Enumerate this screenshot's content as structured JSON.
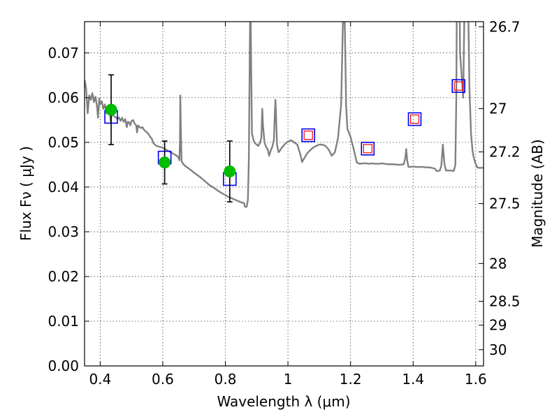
{
  "chart_data": {
    "type": "scatter",
    "title": "",
    "xlabel": "Wavelength  λ (μm)",
    "ylabel": "Flux  Fν  ( μJy )",
    "y2label": "Magnitude (AB)",
    "xlim": [
      0.35,
      1.625
    ],
    "ylim": [
      0.0,
      0.077
    ],
    "grid": true,
    "x_ticks": [
      0.4,
      0.6,
      0.8,
      1.0,
      1.2,
      1.4,
      1.6
    ],
    "x_tick_labels": [
      "0.4",
      "0.6",
      "0.8",
      "1",
      "1.2",
      "1.4",
      "1.6"
    ],
    "y_ticks": [
      0.0,
      0.01,
      0.02,
      0.03,
      0.04,
      0.05,
      0.06,
      0.07
    ],
    "y_tick_labels": [
      "0.00",
      "0.01",
      "0.02",
      "0.03",
      "0.04",
      "0.05",
      "0.06",
      "0.07"
    ],
    "y2_ticks": [
      26.7,
      27,
      27.2,
      27.5,
      28,
      28.5,
      29,
      30
    ],
    "y2_tick_labels": [
      "26.7",
      "27",
      "27.2",
      "27.5",
      "28",
      "28.5",
      "29",
      "30"
    ],
    "colors": {
      "observed": "#00bb00",
      "model_box": "#0000ee",
      "model_inner": "#ee0000",
      "template": "#808080"
    },
    "observed": [
      {
        "x": 0.435,
        "y": 0.0573,
        "err": 0.0078
      },
      {
        "x": 0.606,
        "y": 0.0455,
        "err": 0.0048
      },
      {
        "x": 0.814,
        "y": 0.0435,
        "err": 0.0068
      }
    ],
    "model_points": [
      {
        "x": 0.435,
        "y": 0.0557,
        "inner": false
      },
      {
        "x": 0.606,
        "y": 0.0466,
        "inner": false
      },
      {
        "x": 0.814,
        "y": 0.0418,
        "inner": false
      },
      {
        "x": 1.065,
        "y": 0.0516,
        "inner": true
      },
      {
        "x": 1.255,
        "y": 0.0486,
        "inner": true
      },
      {
        "x": 1.405,
        "y": 0.0552,
        "inner": true
      },
      {
        "x": 1.545,
        "y": 0.0626,
        "inner": true
      }
    ],
    "template_spectrum": [
      [
        0.35,
        0.064
      ],
      [
        0.355,
        0.062
      ],
      [
        0.36,
        0.0565
      ],
      [
        0.365,
        0.0605
      ],
      [
        0.37,
        0.0595
      ],
      [
        0.375,
        0.061
      ],
      [
        0.38,
        0.059
      ],
      [
        0.385,
        0.0602
      ],
      [
        0.39,
        0.058
      ],
      [
        0.393,
        0.0555
      ],
      [
        0.397,
        0.0598
      ],
      [
        0.4,
        0.0585
      ],
      [
        0.405,
        0.0592
      ],
      [
        0.41,
        0.0575
      ],
      [
        0.415,
        0.0585
      ],
      [
        0.42,
        0.0565
      ],
      [
        0.425,
        0.0578
      ],
      [
        0.43,
        0.0568
      ],
      [
        0.434,
        0.0545
      ],
      [
        0.437,
        0.0568
      ],
      [
        0.44,
        0.0562
      ],
      [
        0.445,
        0.0558
      ],
      [
        0.45,
        0.0556
      ],
      [
        0.455,
        0.0552
      ],
      [
        0.46,
        0.0556
      ],
      [
        0.465,
        0.0548
      ],
      [
        0.47,
        0.0555
      ],
      [
        0.475,
        0.0546
      ],
      [
        0.48,
        0.0552
      ],
      [
        0.485,
        0.0534
      ],
      [
        0.488,
        0.0546
      ],
      [
        0.492,
        0.0545
      ],
      [
        0.496,
        0.0538
      ],
      [
        0.5,
        0.0548
      ],
      [
        0.505,
        0.055
      ],
      [
        0.51,
        0.0542
      ],
      [
        0.515,
        0.0538
      ],
      [
        0.518,
        0.0522
      ],
      [
        0.521,
        0.0538
      ],
      [
        0.525,
        0.0535
      ],
      [
        0.53,
        0.0532
      ],
      [
        0.535,
        0.0534
      ],
      [
        0.54,
        0.0528
      ],
      [
        0.545,
        0.0525
      ],
      [
        0.55,
        0.0522
      ],
      [
        0.555,
        0.0518
      ],
      [
        0.56,
        0.0512
      ],
      [
        0.565,
        0.0508
      ],
      [
        0.57,
        0.0498
      ],
      [
        0.58,
        0.0492
      ],
      [
        0.59,
        0.049
      ],
      [
        0.6,
        0.0488
      ],
      [
        0.61,
        0.0484
      ],
      [
        0.62,
        0.048
      ],
      [
        0.63,
        0.0476
      ],
      [
        0.64,
        0.0472
      ],
      [
        0.645,
        0.047
      ],
      [
        0.65,
        0.0466
      ],
      [
        0.653,
        0.046
      ],
      [
        0.655,
        0.0505
      ],
      [
        0.656,
        0.0605
      ],
      [
        0.658,
        0.052
      ],
      [
        0.66,
        0.0458
      ],
      [
        0.665,
        0.0452
      ],
      [
        0.67,
        0.0448
      ],
      [
        0.68,
        0.0443
      ],
      [
        0.69,
        0.0438
      ],
      [
        0.7,
        0.0432
      ],
      [
        0.71,
        0.0427
      ],
      [
        0.72,
        0.0422
      ],
      [
        0.73,
        0.0416
      ],
      [
        0.74,
        0.041
      ],
      [
        0.75,
        0.0404
      ],
      [
        0.76,
        0.04
      ],
      [
        0.77,
        0.0395
      ],
      [
        0.78,
        0.039
      ],
      [
        0.79,
        0.0386
      ],
      [
        0.8,
        0.0382
      ],
      [
        0.81,
        0.0378
      ],
      [
        0.82,
        0.0375
      ],
      [
        0.83,
        0.0372
      ],
      [
        0.84,
        0.0369
      ],
      [
        0.85,
        0.0366
      ],
      [
        0.86,
        0.0364
      ],
      [
        0.862,
        0.0357
      ],
      [
        0.866,
        0.0355
      ],
      [
        0.869,
        0.0358
      ],
      [
        0.872,
        0.0372
      ],
      [
        0.875,
        0.046
      ],
      [
        0.878,
        0.07
      ],
      [
        0.88,
        0.085
      ],
      [
        0.882,
        0.07
      ],
      [
        0.885,
        0.052
      ],
      [
        0.89,
        0.0505
      ],
      [
        0.895,
        0.0498
      ],
      [
        0.9,
        0.0495
      ],
      [
        0.905,
        0.0492
      ],
      [
        0.91,
        0.0498
      ],
      [
        0.915,
        0.051
      ],
      [
        0.918,
        0.0575
      ],
      [
        0.92,
        0.054
      ],
      [
        0.925,
        0.05
      ],
      [
        0.93,
        0.049
      ],
      [
        0.935,
        0.0485
      ],
      [
        0.94,
        0.047
      ],
      [
        0.945,
        0.0482
      ],
      [
        0.95,
        0.049
      ],
      [
        0.955,
        0.0505
      ],
      [
        0.958,
        0.0565
      ],
      [
        0.96,
        0.0595
      ],
      [
        0.962,
        0.056
      ],
      [
        0.965,
        0.0495
      ],
      [
        0.97,
        0.0478
      ],
      [
        0.975,
        0.0482
      ],
      [
        0.98,
        0.0488
      ],
      [
        0.985,
        0.0492
      ],
      [
        0.99,
        0.0496
      ],
      [
        1.0,
        0.0502
      ],
      [
        1.01,
        0.0505
      ],
      [
        1.02,
        0.05
      ],
      [
        1.03,
        0.0495
      ],
      [
        1.04,
        0.0472
      ],
      [
        1.045,
        0.0456
      ],
      [
        1.05,
        0.0462
      ],
      [
        1.06,
        0.0474
      ],
      [
        1.07,
        0.0482
      ],
      [
        1.08,
        0.0488
      ],
      [
        1.09,
        0.0492
      ],
      [
        1.1,
        0.0495
      ],
      [
        1.11,
        0.0495
      ],
      [
        1.12,
        0.0492
      ],
      [
        1.13,
        0.0484
      ],
      [
        1.14,
        0.047
      ],
      [
        1.15,
        0.0478
      ],
      [
        1.16,
        0.051
      ],
      [
        1.17,
        0.0585
      ],
      [
        1.175,
        0.075
      ],
      [
        1.178,
        0.085
      ],
      [
        1.182,
        0.075
      ],
      [
        1.186,
        0.058
      ],
      [
        1.19,
        0.053
      ],
      [
        1.2,
        0.0512
      ],
      [
        1.21,
        0.0485
      ],
      [
        1.22,
        0.0455
      ],
      [
        1.23,
        0.0452
      ],
      [
        1.24,
        0.0453
      ],
      [
        1.25,
        0.0453
      ],
      [
        1.26,
        0.0452
      ],
      [
        1.27,
        0.0453
      ],
      [
        1.28,
        0.0452
      ],
      [
        1.29,
        0.0452
      ],
      [
        1.3,
        0.0453
      ],
      [
        1.31,
        0.0452
      ],
      [
        1.32,
        0.0451
      ],
      [
        1.33,
        0.0451
      ],
      [
        1.34,
        0.0451
      ],
      [
        1.35,
        0.045
      ],
      [
        1.36,
        0.045
      ],
      [
        1.37,
        0.0451
      ],
      [
        1.375,
        0.0465
      ],
      [
        1.378,
        0.0485
      ],
      [
        1.381,
        0.046
      ],
      [
        1.385,
        0.0445
      ],
      [
        1.39,
        0.0445
      ],
      [
        1.4,
        0.0446
      ],
      [
        1.41,
        0.0445
      ],
      [
        1.42,
        0.0445
      ],
      [
        1.43,
        0.0445
      ],
      [
        1.44,
        0.0444
      ],
      [
        1.45,
        0.0444
      ],
      [
        1.46,
        0.0443
      ],
      [
        1.47,
        0.0441
      ],
      [
        1.475,
        0.0436
      ],
      [
        1.48,
        0.0436
      ],
      [
        1.485,
        0.0437
      ],
      [
        1.49,
        0.0447
      ],
      [
        1.495,
        0.0495
      ],
      [
        1.5,
        0.0452
      ],
      [
        1.505,
        0.0437
      ],
      [
        1.51,
        0.0437
      ],
      [
        1.52,
        0.0437
      ],
      [
        1.53,
        0.0436
      ],
      [
        1.535,
        0.045
      ],
      [
        1.538,
        0.06
      ],
      [
        1.54,
        0.085
      ],
      [
        1.548,
        0.085
      ],
      [
        1.55,
        0.07
      ],
      [
        1.56,
        0.06
      ],
      [
        1.565,
        0.085
      ],
      [
        1.575,
        0.085
      ],
      [
        1.58,
        0.062
      ],
      [
        1.585,
        0.052
      ],
      [
        1.59,
        0.048
      ],
      [
        1.595,
        0.0462
      ],
      [
        1.6,
        0.0452
      ],
      [
        1.605,
        0.0444
      ],
      [
        1.61,
        0.0443
      ],
      [
        1.625,
        0.0443
      ]
    ]
  }
}
